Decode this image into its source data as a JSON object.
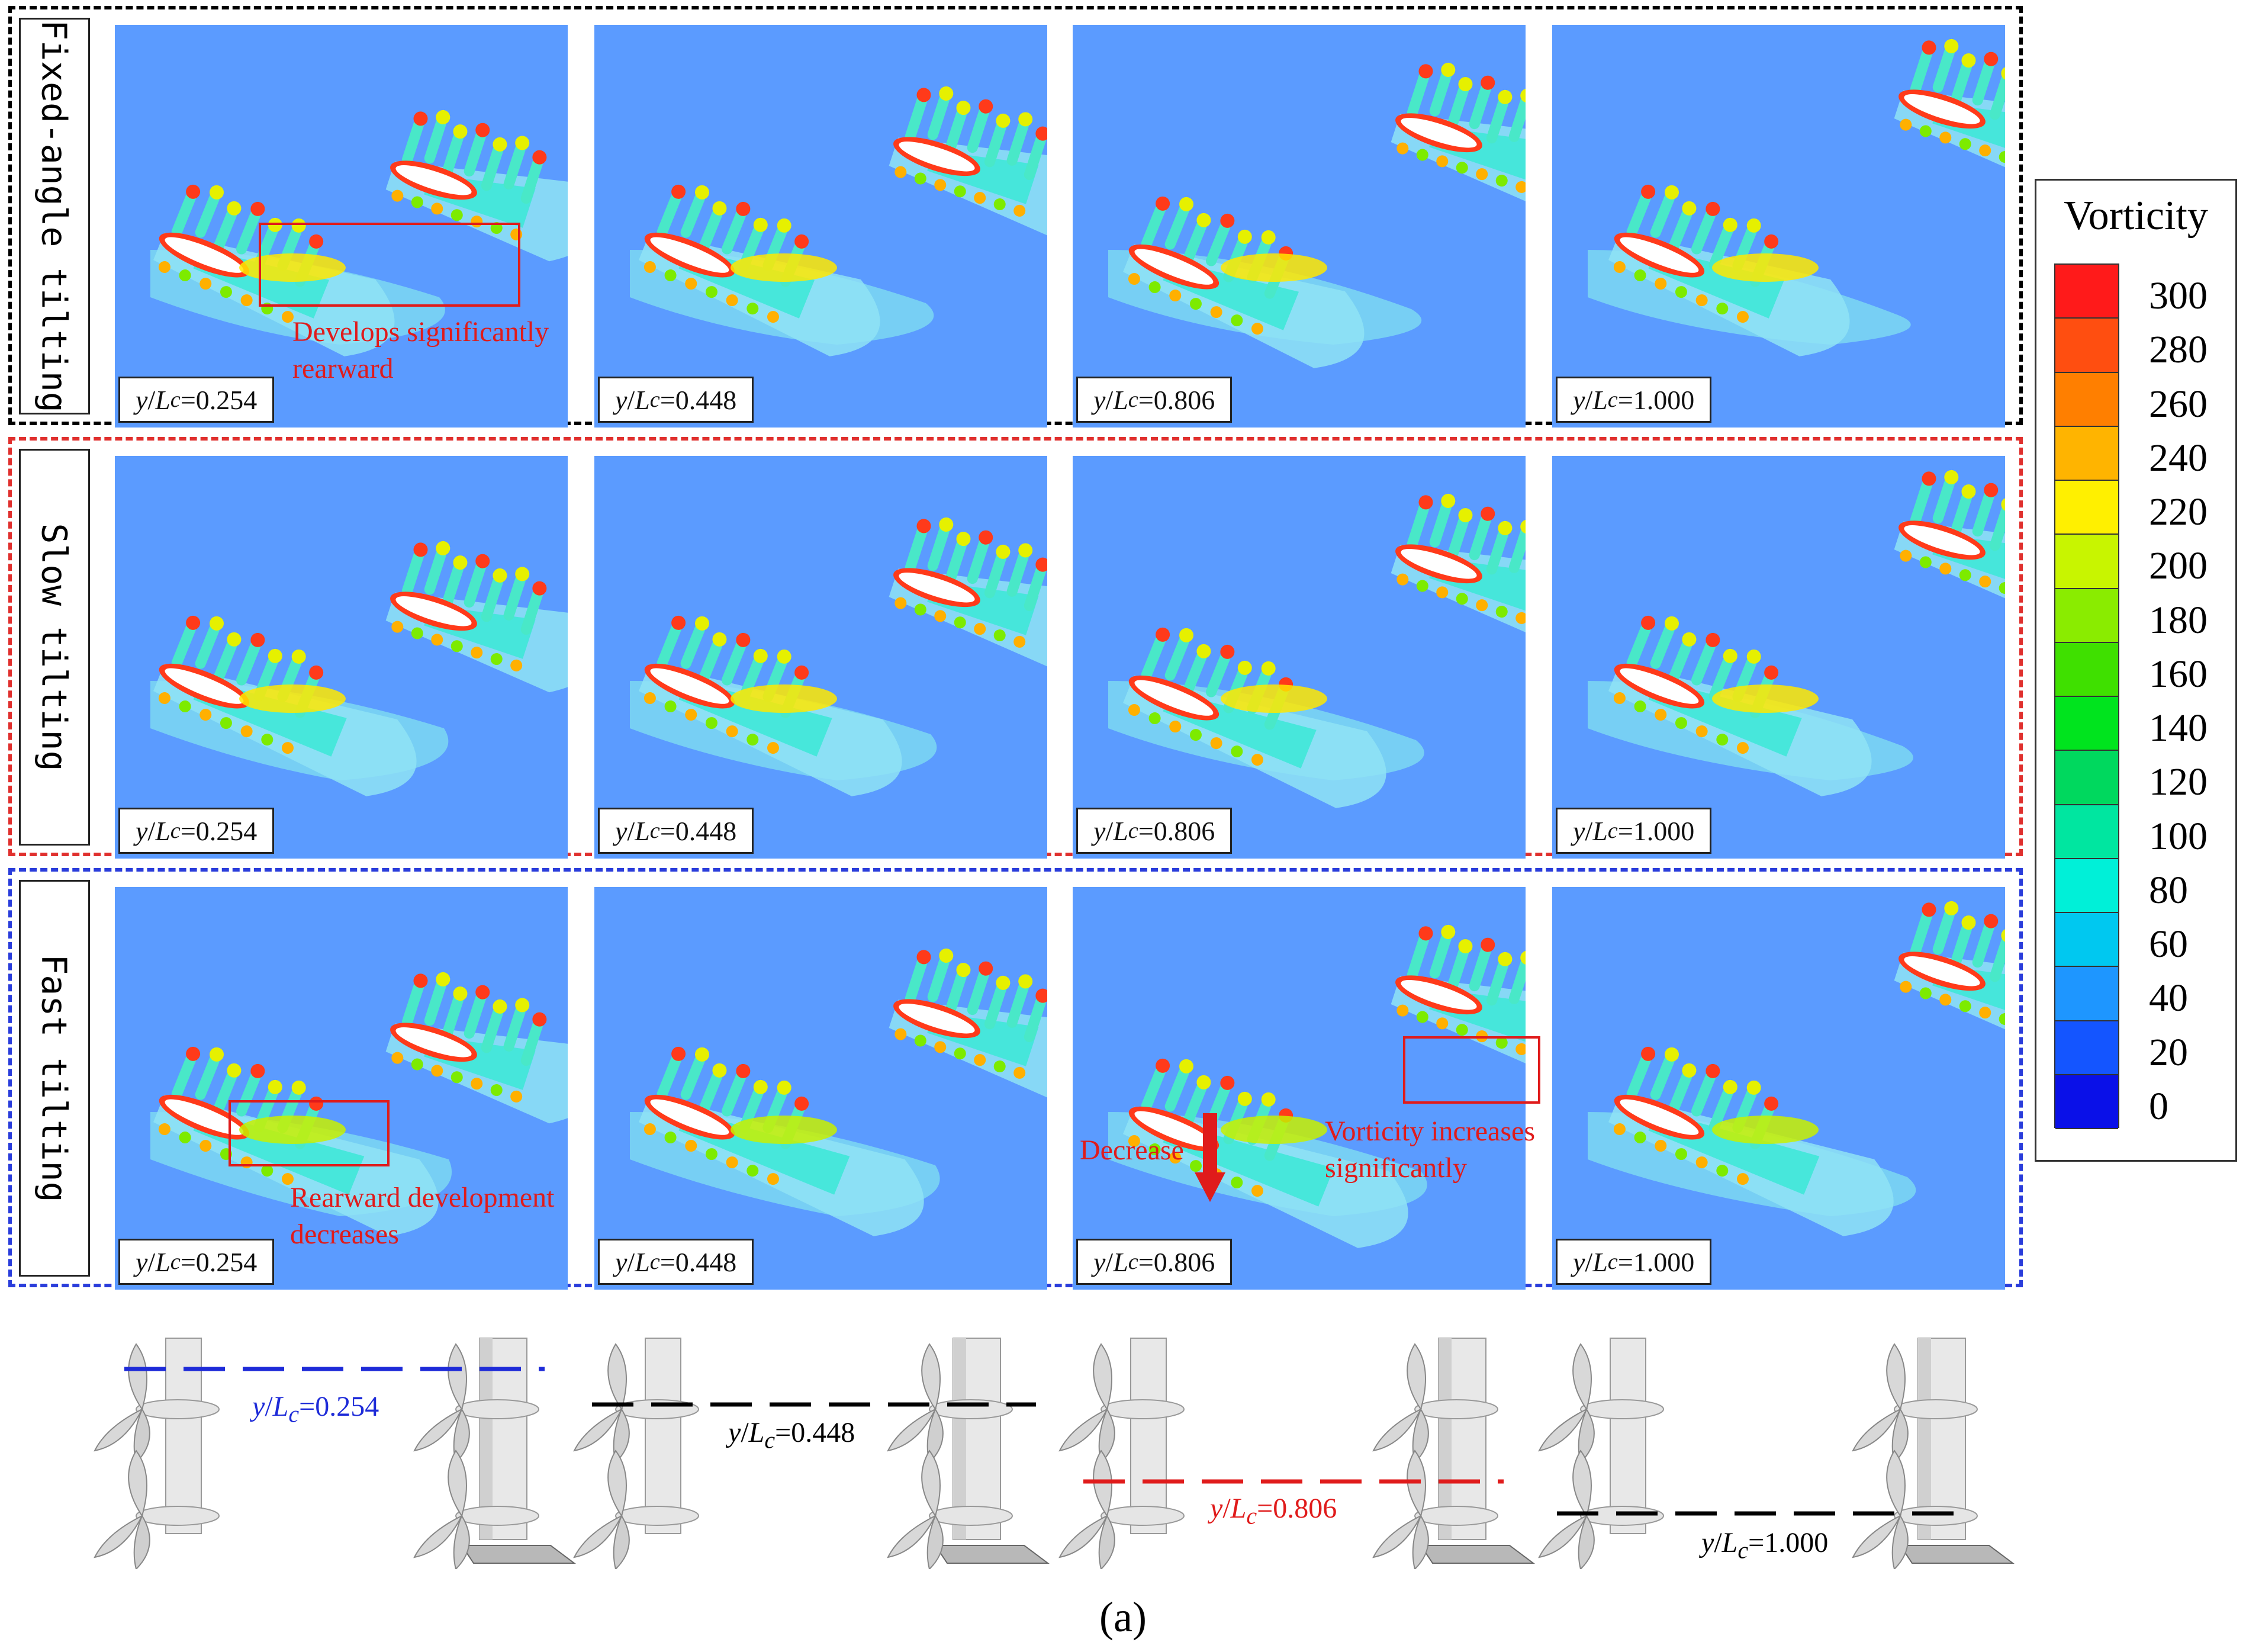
{
  "rows": [
    {
      "label": "Fixed-angle tilting",
      "border_color": "#000000"
    },
    {
      "label": "Slow tilting",
      "border_color": "#E0302E"
    },
    {
      "label": "Fast tilting",
      "border_color": "#2A3DDB"
    }
  ],
  "panel_label_prefix": "y/L",
  "panel_label_sub": "c",
  "positions": [
    "0.254",
    "0.448",
    "0.806",
    "1.000"
  ],
  "annotations": {
    "a1_line1": "Develops significantly",
    "a1_line2": "rearward",
    "a2_line1": "Rearward development",
    "a2_line2": "decreases",
    "a3": "Decrease",
    "a4_line1": "Vorticity increases",
    "a4_line2": "significantly"
  },
  "legend": {
    "title": "Vorticity",
    "ticks": [
      "300",
      "280",
      "260",
      "240",
      "220",
      "200",
      "180",
      "160",
      "140",
      "120",
      "100",
      "80",
      "60",
      "40",
      "20",
      "0"
    ],
    "colors": [
      "#FF1A1A",
      "#FF4E10",
      "#FF7F00",
      "#FFB400",
      "#FFF000",
      "#C8F500",
      "#8AEC00",
      "#3FE000",
      "#00E41E",
      "#00D85E",
      "#00E6A0",
      "#00F0D8",
      "#00C8F0",
      "#1E96FF",
      "#1455FF",
      "#0A10E8"
    ]
  },
  "bottom_labels": [
    {
      "value": "0.254",
      "color": "#1E2BD8"
    },
    {
      "value": "0.448",
      "color": "#000000"
    },
    {
      "value": "0.806",
      "color": "#E01B1B"
    },
    {
      "value": "1.000",
      "color": "#000000"
    }
  ],
  "caption": "(a)",
  "annotation_color": "#E01B1B",
  "background_flow_color": "#5B9BFF"
}
